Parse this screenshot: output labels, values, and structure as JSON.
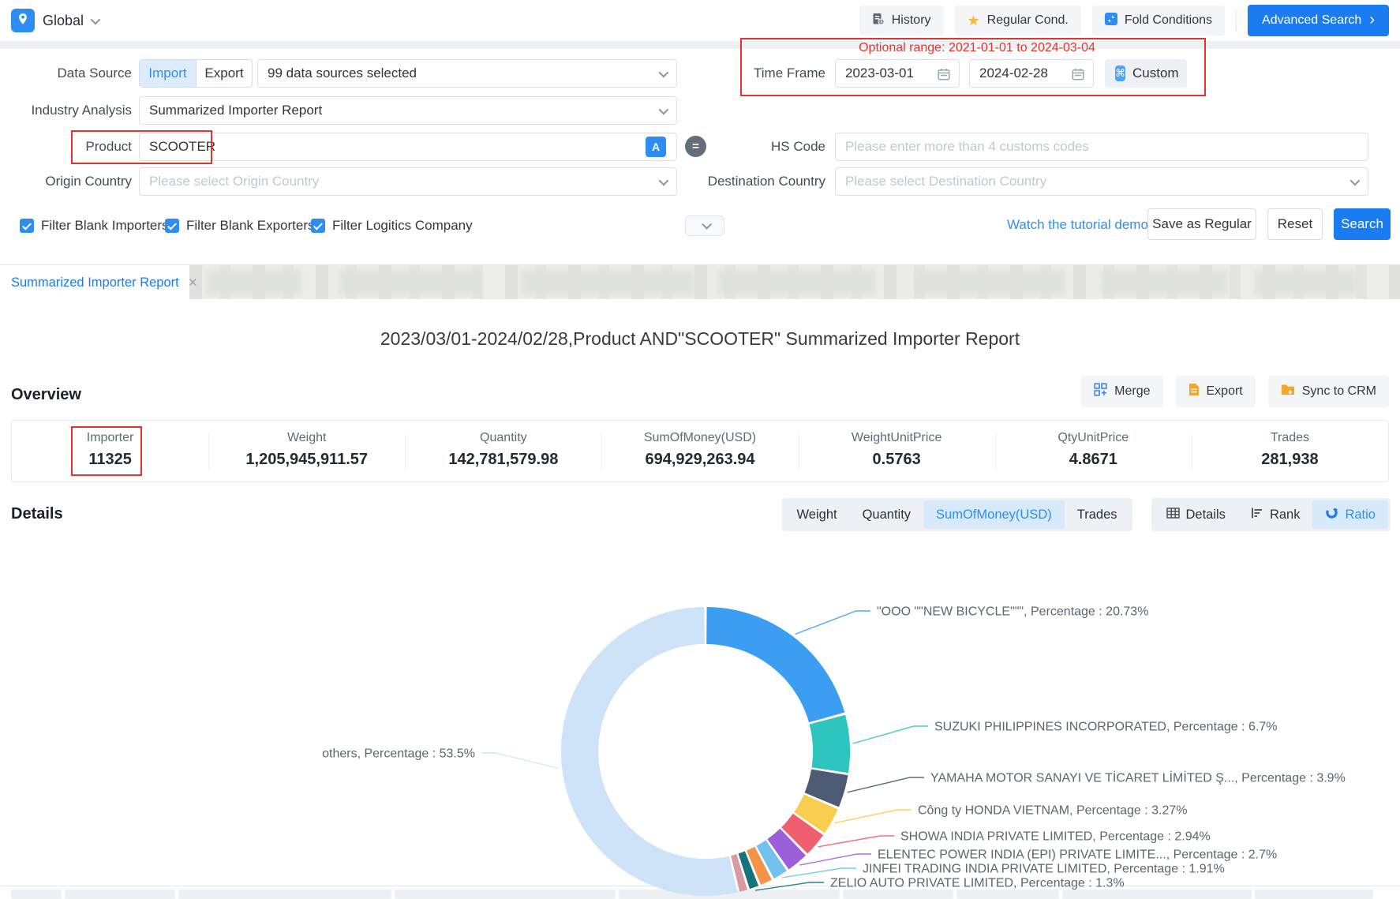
{
  "topbar": {
    "region_label": "Global",
    "history_label": "History",
    "regular_label": "Regular Cond.",
    "fold_label": "Fold Conditions",
    "advanced_label": "Advanced Search"
  },
  "form": {
    "data_source_label": "Data Source",
    "import_label": "Import",
    "export_label": "Export",
    "sources_value": "99 data sources selected",
    "industry_label": "Industry Analysis",
    "industry_value": "Summarized Importer Report",
    "product_label": "Product",
    "product_value": "SCOOTER",
    "origin_label": "Origin Country",
    "origin_placeholder": "Please select Origin Country",
    "time_frame_label": "Time Frame",
    "date_start": "2023-03-01",
    "date_end": "2024-02-28",
    "custom_label": "Custom",
    "optional_range": "Optional range:  2021-01-01 to 2024-03-04",
    "hs_label": "HS Code",
    "hs_placeholder": "Please enter more than 4 customs codes",
    "destination_label": "Destination Country",
    "destination_placeholder": "Please select Destination Country",
    "checkboxes": [
      {
        "label": "Filter Blank Importers",
        "checked": true
      },
      {
        "label": "Filter Blank Exporters",
        "checked": true
      },
      {
        "label": "Filter Logitics Company",
        "checked": true
      }
    ],
    "tutorial_link": "Watch the tutorial demo",
    "save_regular_label": "Save as Regular",
    "reset_label": "Reset",
    "search_label": "Search"
  },
  "tab_title": "Summarized Importer Report",
  "report_title": "2023/03/01-2024/02/28,Product AND\"SCOOTER\" Summarized Importer Report",
  "overview": {
    "heading": "Overview",
    "merge_label": "Merge",
    "export_label": "Export",
    "sync_label": "Sync to CRM",
    "stats": [
      {
        "label": "Importer",
        "value": "11325"
      },
      {
        "label": "Weight",
        "value": "1,205,945,911.57"
      },
      {
        "label": "Quantity",
        "value": "142,781,579.98"
      },
      {
        "label": "SumOfMoney(USD)",
        "value": "694,929,263.94"
      },
      {
        "label": "WeightUnitPrice",
        "value": "0.5763"
      },
      {
        "label": "QtyUnitPrice",
        "value": "4.8671"
      },
      {
        "label": "Trades",
        "value": "281,938"
      }
    ]
  },
  "details": {
    "heading": "Details",
    "metric_tabs": [
      {
        "label": "Weight",
        "active": false
      },
      {
        "label": "Quantity",
        "active": false
      },
      {
        "label": "SumOfMoney(USD)",
        "active": true
      },
      {
        "label": "Trades",
        "active": false
      }
    ],
    "view_tabs": [
      {
        "label": "Details",
        "active": false
      },
      {
        "label": "Rank",
        "active": false
      },
      {
        "label": "Ratio",
        "active": true
      }
    ]
  },
  "chart_data": {
    "type": "pie",
    "subtype": "donut",
    "title": "Importer ratio by SumOfMoney(USD)",
    "legend_position": "none",
    "percentage_word": "Percentage",
    "segments": [
      {
        "name": "\"OOO \"\"NEW BICYCLE\"\"\"",
        "pct": 20.73,
        "color": "#3b9ef3"
      },
      {
        "name": "SUZUKI PHILIPPINES INCORPORATED",
        "pct": 6.7,
        "color": "#2ec5be"
      },
      {
        "name": "YAMAHA MOTOR SANAYI VE TİCARET LİMİTED Ş...",
        "pct": 3.9,
        "color": "#4c5b73"
      },
      {
        "name": "Công ty HONDA VIETNAM",
        "pct": 3.27,
        "color": "#f7ce4f"
      },
      {
        "name": "SHOWA INDIA PRIVATE LIMITED",
        "pct": 2.94,
        "color": "#ee5f6f"
      },
      {
        "name": "ELENTEC POWER INDIA (EPI) PRIVATE LIMITE...",
        "pct": 2.7,
        "color": "#9b5fd9"
      },
      {
        "name": "JINFEI TRADING INDIA PRIVATE LIMITED",
        "pct": 1.91,
        "color": "#70c3ee"
      },
      {
        "name": "",
        "pct": 1.6,
        "color": "#f5934b",
        "estimated": true
      },
      {
        "name": "ZELIO AUTO PRIVATE LIMITED",
        "pct": 1.3,
        "color": "#157379"
      },
      {
        "name": "",
        "pct": 1.15,
        "color": "#d899a1",
        "estimated": true
      },
      {
        "name": "others",
        "pct": 53.5,
        "color": "#cfe3f8"
      }
    ]
  }
}
